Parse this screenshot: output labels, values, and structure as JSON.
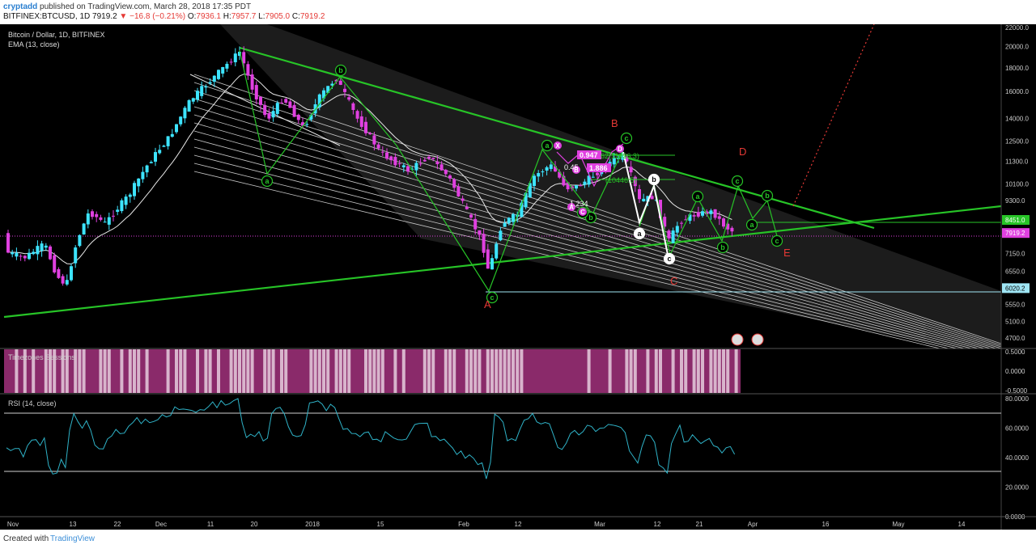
{
  "header": {
    "author": "cryptadd",
    "published": "published on TradingView.com, March 28, 2018 17:35 PDT",
    "symbol": "BITFINEX:BTCUSD",
    "interval": "1D",
    "last": "7919.2",
    "change": "−16.8 (−0.21%)",
    "o_label": "O:",
    "o": "7936.1",
    "h_label": "H:",
    "h": "7957.7",
    "l_label": "L:",
    "l": "7905.0",
    "c_label": "C:",
    "c": "7919.2"
  },
  "footer": {
    "created": "Created with",
    "brand": "TradingView"
  },
  "colors": {
    "up": "#3de4ff",
    "down": "#e040e0",
    "wave": "#27c427",
    "label_red": "#e53935",
    "rsi": "#2fb3c8",
    "session": "#8a2a6a"
  },
  "chart_data": [
    {
      "type": "candlestick",
      "title": "Bitcoin / Dollar, 1D, BITFINEX",
      "indicator": "EMA (13, close)",
      "y_scale": "log",
      "y_ticks": [
        "22000.0",
        "20000.0",
        "18000.0",
        "16000.0",
        "14000.0",
        "12500.0",
        "11300.0",
        "10100.0",
        "9300.0",
        "8451.0",
        "7919.2",
        "7150.0",
        "6550.0",
        "6020.2",
        "5550.0",
        "5100.0",
        "4700.0"
      ],
      "price_labels": [
        {
          "value": 8451.0,
          "text": "8451.0"
        },
        {
          "value": 7919.2,
          "text": "7919.2"
        },
        {
          "value": 6020.2,
          "text": "6020.2"
        }
      ],
      "x_ticks": [
        "Nov",
        "13",
        "22",
        "Dec",
        "11",
        "20",
        "2018",
        "15",
        "Feb",
        "12",
        "Mar",
        "12",
        "21",
        "Apr",
        "16",
        "May",
        "14"
      ],
      "candles_ohlc_sample": [
        {
          "date": "2017-12-17",
          "open": 18950,
          "high": 19900,
          "low": 18600,
          "close": 19200
        },
        {
          "date": "2018-02-06",
          "open": 6900,
          "high": 7900,
          "low": 6000,
          "close": 7650
        },
        {
          "date": "2018-03-05",
          "open": 11500,
          "high": 11700,
          "low": 11000,
          "close": 11450
        },
        {
          "date": "2018-03-28",
          "open": 7936.1,
          "high": 7957.7,
          "low": 7905.0,
          "close": 7919.2
        }
      ],
      "wave_labels": [
        "a",
        "b",
        "c",
        "a",
        "b",
        "c",
        "a",
        "b",
        "c",
        "a",
        "b",
        "c",
        "a",
        "b",
        "c",
        "X",
        "B",
        "D",
        "A",
        "C"
      ],
      "corrective_labels": [
        "A",
        "B",
        "C",
        "D",
        "E"
      ],
      "harmonic_ratios": [
        "0.947",
        "1.886",
        "0.45",
        "1.234"
      ],
      "fib_labels": [
        "62(11326.3)",
        "(10446.5)"
      ]
    },
    {
      "type": "heatmap",
      "title": "Timezones Sessions",
      "y_ticks": [
        "0.5000",
        "0.0000",
        "-0.5000"
      ]
    },
    {
      "type": "line",
      "title": "RSI (14, close)",
      "y_ticks": [
        "80.0000",
        "60.0000",
        "40.0000",
        "20.0000",
        "0.0000"
      ],
      "ylim": [
        0,
        80
      ],
      "bands": [
        70,
        30
      ]
    }
  ]
}
